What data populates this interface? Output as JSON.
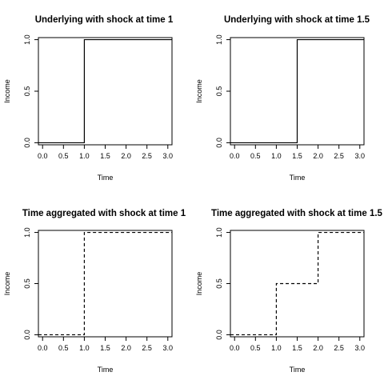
{
  "chart_data": [
    {
      "type": "line",
      "title": "Underlying with shock at time 1",
      "xlabel": "Time",
      "ylabel": "Income",
      "xlim": [
        -0.1,
        3.1
      ],
      "ylim": [
        -0.02,
        1.02
      ],
      "x_ticks": [
        "0.0",
        "0.5",
        "1.0",
        "1.5",
        "2.0",
        "2.5",
        "3.0"
      ],
      "y_ticks": [
        "0.0",
        "0.5",
        "1.0"
      ],
      "line_style": "solid",
      "series": [
        {
          "x": [
            -0.1,
            1.0,
            1.0,
            3.1
          ],
          "y": [
            0,
            0,
            1,
            1
          ]
        }
      ]
    },
    {
      "type": "line",
      "title": "Underlying with shock at time 1.5",
      "xlabel": "Time",
      "ylabel": "Income",
      "xlim": [
        -0.1,
        3.1
      ],
      "ylim": [
        -0.02,
        1.02
      ],
      "x_ticks": [
        "0.0",
        "0.5",
        "1.0",
        "1.5",
        "2.0",
        "2.5",
        "3.0"
      ],
      "y_ticks": [
        "0.0",
        "0.5",
        "1.0"
      ],
      "line_style": "solid",
      "series": [
        {
          "x": [
            -0.1,
            1.5,
            1.5,
            3.1
          ],
          "y": [
            0,
            0,
            1,
            1
          ]
        }
      ]
    },
    {
      "type": "line",
      "title": "Time aggregated with shock at time 1",
      "xlabel": "Time",
      "ylabel": "Income",
      "xlim": [
        -0.1,
        3.1
      ],
      "ylim": [
        -0.02,
        1.02
      ],
      "x_ticks": [
        "0.0",
        "0.5",
        "1.0",
        "1.5",
        "2.0",
        "2.5",
        "3.0"
      ],
      "y_ticks": [
        "0.0",
        "0.5",
        "1.0"
      ],
      "line_style": "dashed",
      "series": [
        {
          "x": [
            -0.1,
            1.0,
            1.0,
            3.1
          ],
          "y": [
            0,
            0,
            1,
            1
          ]
        }
      ]
    },
    {
      "type": "line",
      "title": "Time aggregated with shock at time 1.5",
      "xlabel": "Time",
      "ylabel": "Income",
      "xlim": [
        -0.1,
        3.1
      ],
      "ylim": [
        -0.02,
        1.02
      ],
      "x_ticks": [
        "0.0",
        "0.5",
        "1.0",
        "1.5",
        "2.0",
        "2.5",
        "3.0"
      ],
      "y_ticks": [
        "0.0",
        "0.5",
        "1.0"
      ],
      "line_style": "dashed",
      "series": [
        {
          "x": [
            -0.1,
            1.0,
            1.0,
            2.0,
            2.0,
            3.1
          ],
          "y": [
            0,
            0,
            0.5,
            0.5,
            1,
            1
          ]
        }
      ]
    }
  ]
}
